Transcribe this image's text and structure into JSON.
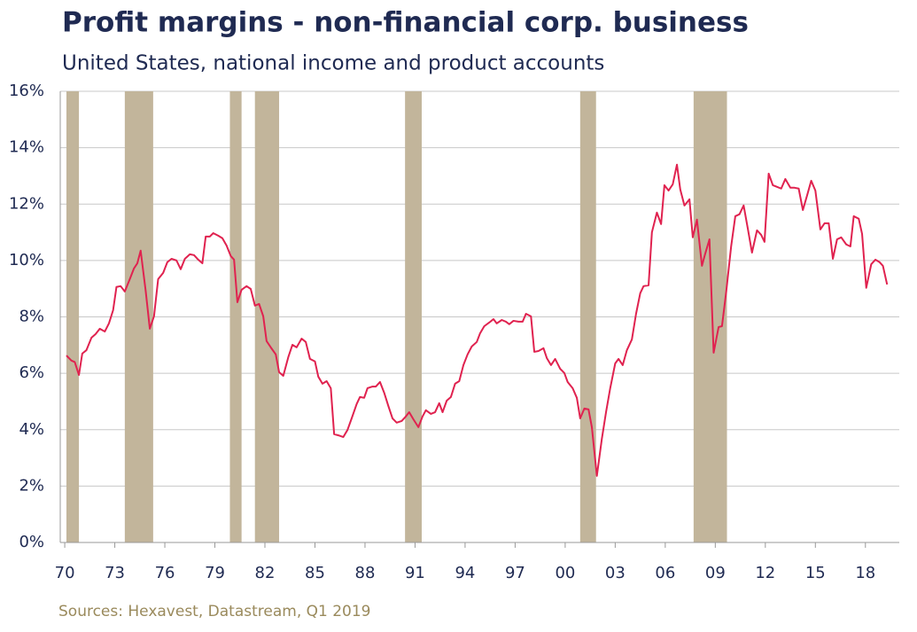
{
  "chart_data": {
    "type": "line",
    "title": "Profit margins - non-financial corp. business",
    "subtitle": "United States, national income and product accounts",
    "source": "Sources: Hexavest, Datastream, Q1 2019",
    "xlim": [
      1969.73,
      2020.03
    ],
    "xticks": [
      {
        "value": 1970,
        "label": "70"
      },
      {
        "value": 1973,
        "label": "73"
      },
      {
        "value": 1976,
        "label": "76"
      },
      {
        "value": 1979,
        "label": "79"
      },
      {
        "value": 1982,
        "label": "82"
      },
      {
        "value": 1985,
        "label": "85"
      },
      {
        "value": 1988,
        "label": "88"
      },
      {
        "value": 1991,
        "label": "91"
      },
      {
        "value": 1994,
        "label": "94"
      },
      {
        "value": 1997,
        "label": "97"
      },
      {
        "value": 2000,
        "label": "00"
      },
      {
        "value": 2003,
        "label": "03"
      },
      {
        "value": 2006,
        "label": "06"
      },
      {
        "value": 2009,
        "label": "09"
      },
      {
        "value": 2012,
        "label": "12"
      },
      {
        "value": 2015,
        "label": "15"
      },
      {
        "value": 2018,
        "label": "18"
      }
    ],
    "ylim": [
      0,
      16
    ],
    "yticks": [
      {
        "value": 0,
        "label": "0%"
      },
      {
        "value": 2,
        "label": "2%"
      },
      {
        "value": 4,
        "label": "4%"
      },
      {
        "value": 6,
        "label": "6%"
      },
      {
        "value": 8,
        "label": "8%"
      },
      {
        "value": 10,
        "label": "10%"
      },
      {
        "value": 12,
        "label": "12%"
      },
      {
        "value": 14,
        "label": "14%"
      },
      {
        "value": 16,
        "label": "16%"
      }
    ],
    "grid": true,
    "recession_color": "#c2b59b",
    "recessions": [
      [
        1970.1,
        1970.85
      ],
      [
        1973.6,
        1975.3
      ],
      [
        1979.9,
        1980.6
      ],
      [
        1981.4,
        1982.85
      ],
      [
        1990.4,
        1991.4
      ],
      [
        2000.9,
        2001.85
      ],
      [
        2007.7,
        2009.7
      ]
    ],
    "series": [
      {
        "color": "#e0224f",
        "x": [
          1970.1,
          1970.4,
          1970.6,
          1970.85,
          1971.05,
          1971.3,
          1971.6,
          1971.85,
          1972.1,
          1972.4,
          1972.65,
          1972.9,
          1973.1,
          1973.35,
          1973.6,
          1973.9,
          1974.15,
          1974.35,
          1974.55,
          1974.85,
          1975.1,
          1975.35,
          1975.6,
          1975.9,
          1976.15,
          1976.4,
          1976.7,
          1976.95,
          1977.2,
          1977.5,
          1977.75,
          1978.0,
          1978.25,
          1978.45,
          1978.7,
          1978.9,
          1979.2,
          1979.45,
          1979.7,
          1979.95,
          1980.15,
          1980.35,
          1980.6,
          1980.9,
          1981.15,
          1981.4,
          1981.65,
          1981.9,
          1982.1,
          1982.35,
          1982.65,
          1982.85,
          1983.1,
          1983.4,
          1983.65,
          1983.9,
          1984.2,
          1984.45,
          1984.7,
          1985.0,
          1985.2,
          1985.45,
          1985.7,
          1985.95,
          1986.15,
          1986.4,
          1986.7,
          1986.95,
          1987.2,
          1987.5,
          1987.7,
          1987.95,
          1988.15,
          1988.45,
          1988.65,
          1988.9,
          1989.15,
          1989.4,
          1989.65,
          1989.9,
          1990.2,
          1990.45,
          1990.65,
          1990.9,
          1991.2,
          1991.45,
          1991.65,
          1991.95,
          1992.2,
          1992.45,
          1992.65,
          1992.9,
          1993.15,
          1993.4,
          1993.65,
          1993.9,
          1994.15,
          1994.4,
          1994.7,
          1994.9,
          1995.15,
          1995.45,
          1995.7,
          1995.9,
          1996.2,
          1996.45,
          1996.65,
          1996.9,
          1997.2,
          1997.45,
          1997.65,
          1997.95,
          1998.15,
          1998.4,
          1998.7,
          1998.9,
          1999.15,
          1999.4,
          1999.7,
          1999.95,
          2000.15,
          2000.45,
          2000.7,
          2000.9,
          2001.15,
          2001.4,
          2001.6,
          2001.9,
          2002.2,
          2002.45,
          2002.7,
          2003.0,
          2003.2,
          2003.45,
          2003.7,
          2004.0,
          2004.25,
          2004.5,
          2004.7,
          2005.0,
          2005.2,
          2005.5,
          2005.75,
          2005.95,
          2006.2,
          2006.45,
          2006.7,
          2006.9,
          2007.15,
          2007.45,
          2007.65,
          2007.9,
          2008.2,
          2008.4,
          2008.65,
          2008.9,
          2009.2,
          2009.4,
          2009.65,
          2009.95,
          2010.2,
          2010.45,
          2010.7,
          2010.95,
          2011.2,
          2011.5,
          2011.75,
          2011.95,
          2012.2,
          2012.45,
          2012.7,
          2012.95,
          2013.2,
          2013.5,
          2013.75,
          2014.0,
          2014.25,
          2014.5,
          2014.75,
          2015.0,
          2015.3,
          2015.55,
          2015.8,
          2016.05,
          2016.3,
          2016.55,
          2016.85,
          2017.1,
          2017.3,
          2017.6,
          2017.8,
          2018.05,
          2018.35,
          2018.6,
          2018.85,
          2019.05,
          2019.3
        ],
        "values": [
          6.63,
          6.45,
          6.4,
          5.94,
          6.7,
          6.82,
          7.26,
          7.39,
          7.58,
          7.48,
          7.77,
          8.24,
          9.06,
          9.09,
          8.9,
          9.34,
          9.72,
          9.9,
          10.35,
          8.93,
          7.58,
          8.02,
          9.34,
          9.56,
          9.94,
          10.06,
          10.0,
          9.69,
          10.06,
          10.22,
          10.19,
          10.03,
          9.9,
          10.85,
          10.85,
          10.97,
          10.88,
          10.79,
          10.53,
          10.16,
          10.03,
          8.52,
          8.96,
          9.09,
          8.99,
          8.4,
          8.46,
          8.02,
          7.14,
          6.92,
          6.67,
          6.04,
          5.91,
          6.57,
          7.01,
          6.92,
          7.23,
          7.11,
          6.51,
          6.42,
          5.88,
          5.63,
          5.72,
          5.47,
          3.84,
          3.8,
          3.74,
          3.99,
          4.4,
          4.91,
          5.16,
          5.13,
          5.47,
          5.53,
          5.53,
          5.69,
          5.31,
          4.84,
          4.4,
          4.25,
          4.31,
          4.47,
          4.62,
          4.37,
          4.09,
          4.47,
          4.69,
          4.56,
          4.62,
          4.94,
          4.62,
          5.03,
          5.16,
          5.63,
          5.72,
          6.29,
          6.67,
          6.95,
          7.11,
          7.42,
          7.67,
          7.8,
          7.92,
          7.77,
          7.89,
          7.83,
          7.74,
          7.86,
          7.83,
          7.83,
          8.11,
          8.02,
          6.76,
          6.79,
          6.89,
          6.54,
          6.29,
          6.51,
          6.16,
          6.01,
          5.69,
          5.47,
          5.13,
          4.4,
          4.75,
          4.72,
          4.09,
          2.36,
          3.68,
          4.62,
          5.47,
          6.35,
          6.51,
          6.29,
          6.82,
          7.2,
          8.11,
          8.84,
          9.09,
          9.12,
          11.0,
          11.7,
          11.29,
          12.67,
          12.48,
          12.7,
          13.4,
          12.52,
          11.95,
          12.17,
          10.82,
          11.45,
          9.81,
          10.25,
          10.75,
          6.73,
          7.64,
          7.67,
          8.87,
          10.5,
          11.57,
          11.64,
          11.95,
          11.13,
          10.28,
          11.07,
          10.91,
          10.66,
          13.08,
          12.67,
          12.61,
          12.55,
          12.89,
          12.58,
          12.58,
          12.55,
          11.79,
          12.3,
          12.83,
          12.48,
          11.1,
          11.32,
          11.32,
          10.06,
          10.75,
          10.82,
          10.57,
          10.5,
          11.57,
          11.48,
          10.94,
          9.03,
          9.87,
          10.03,
          9.94,
          9.81,
          9.15
        ]
      }
    ]
  }
}
